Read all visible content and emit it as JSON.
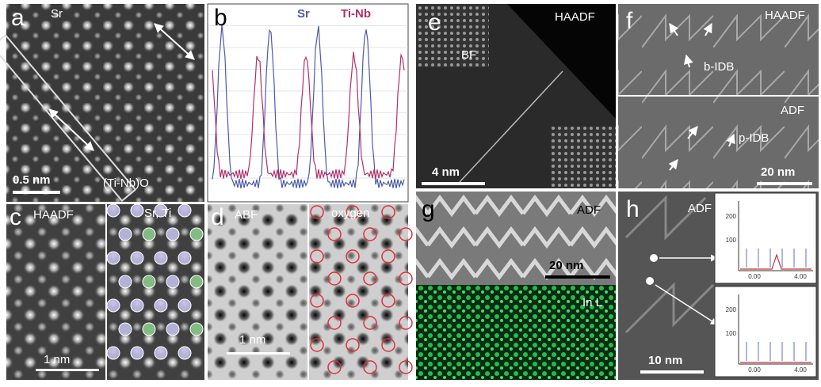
{
  "panels": {
    "a": {
      "label": "a",
      "site": "Sr",
      "scale_bar": "0.5 nm",
      "column": "(Ti-Nb)O"
    },
    "b": {
      "label": "b",
      "legend": [
        "Sr",
        "Ti-Nb"
      ]
    },
    "c": {
      "label": "c",
      "mode": "HAADF",
      "sites": "Sr, Ti",
      "scale_bar": "1 nm"
    },
    "d": {
      "label": "d",
      "mode": "ABF",
      "sites": "oxygen",
      "scale_bar": "1 nm"
    },
    "e": {
      "label": "e",
      "mode": "HAADF",
      "inset": "BF",
      "scale_bar": "4 nm"
    },
    "f": {
      "label": "f",
      "mode_top": "HAADF",
      "defect_top": "b-IDB",
      "mode_bottom": "ADF",
      "defect_bottom": "p-IDB",
      "scale_bar": "20 nm"
    },
    "g": {
      "label": "g",
      "mode": "ADF",
      "scale_bar": "20 nm",
      "map": "In L"
    },
    "h": {
      "label": "h",
      "mode": "ADF",
      "scale_bar": "10 nm",
      "spectra": [
        {
          "yticks": [
            "200",
            "100"
          ],
          "xticks": [
            "0.00",
            "4.00"
          ]
        },
        {
          "yticks": [
            "200",
            "100"
          ],
          "xticks": [
            "0.00",
            "4.00"
          ]
        }
      ]
    }
  }
}
